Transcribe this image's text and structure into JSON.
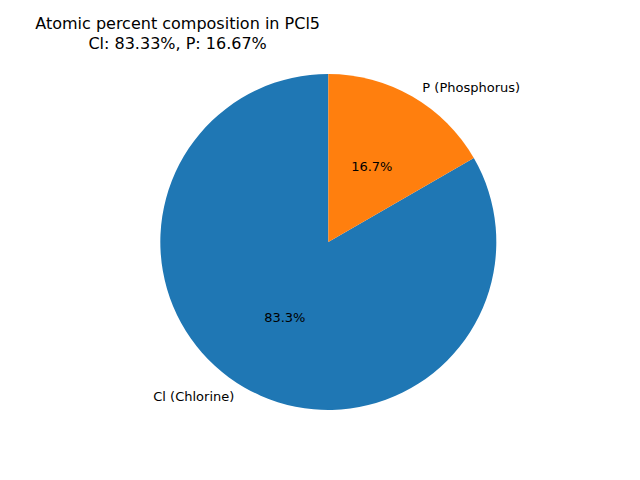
{
  "chart_data": {
    "type": "pie",
    "title": "Atomic percent composition in PCl5",
    "subtitle": "Cl: 83.33%, P: 16.67%",
    "categories": [
      "Cl (Chlorine)",
      "P (Phosphorus)"
    ],
    "values": [
      83.33,
      16.67
    ],
    "value_labels": [
      "83.3%",
      "16.7%"
    ],
    "colors": [
      "#1f77b4",
      "#ff7f0e"
    ],
    "data_labels": true
  }
}
